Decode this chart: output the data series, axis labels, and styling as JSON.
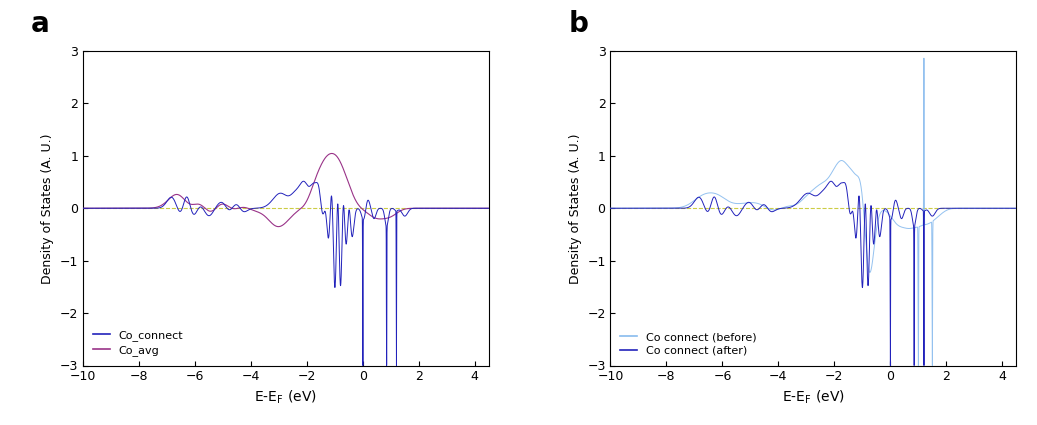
{
  "xlim": [
    -10,
    4.5
  ],
  "ylim": [
    -3,
    3
  ],
  "xlabel": "E-E$_{\\rm F}$ (eV)",
  "ylabel": "Density of States (A. U.)",
  "xticks": [
    -10,
    -8,
    -6,
    -4,
    -2,
    0,
    2,
    4
  ],
  "yticks": [
    -3,
    -2,
    -1,
    0,
    1,
    2,
    3
  ],
  "panel_a_label": "a",
  "panel_b_label": "b",
  "co_connect_color": "#2222bb",
  "co_avg_color": "#993388",
  "co_before_color": "#88bbee",
  "co_after_color": "#2222bb",
  "legend_a": [
    "Co_connect",
    "Co_avg"
  ],
  "legend_b": [
    "Co connect (before)",
    "Co connect (after)"
  ],
  "dashed_zero_color": "#cccc44",
  "background": "#ffffff"
}
